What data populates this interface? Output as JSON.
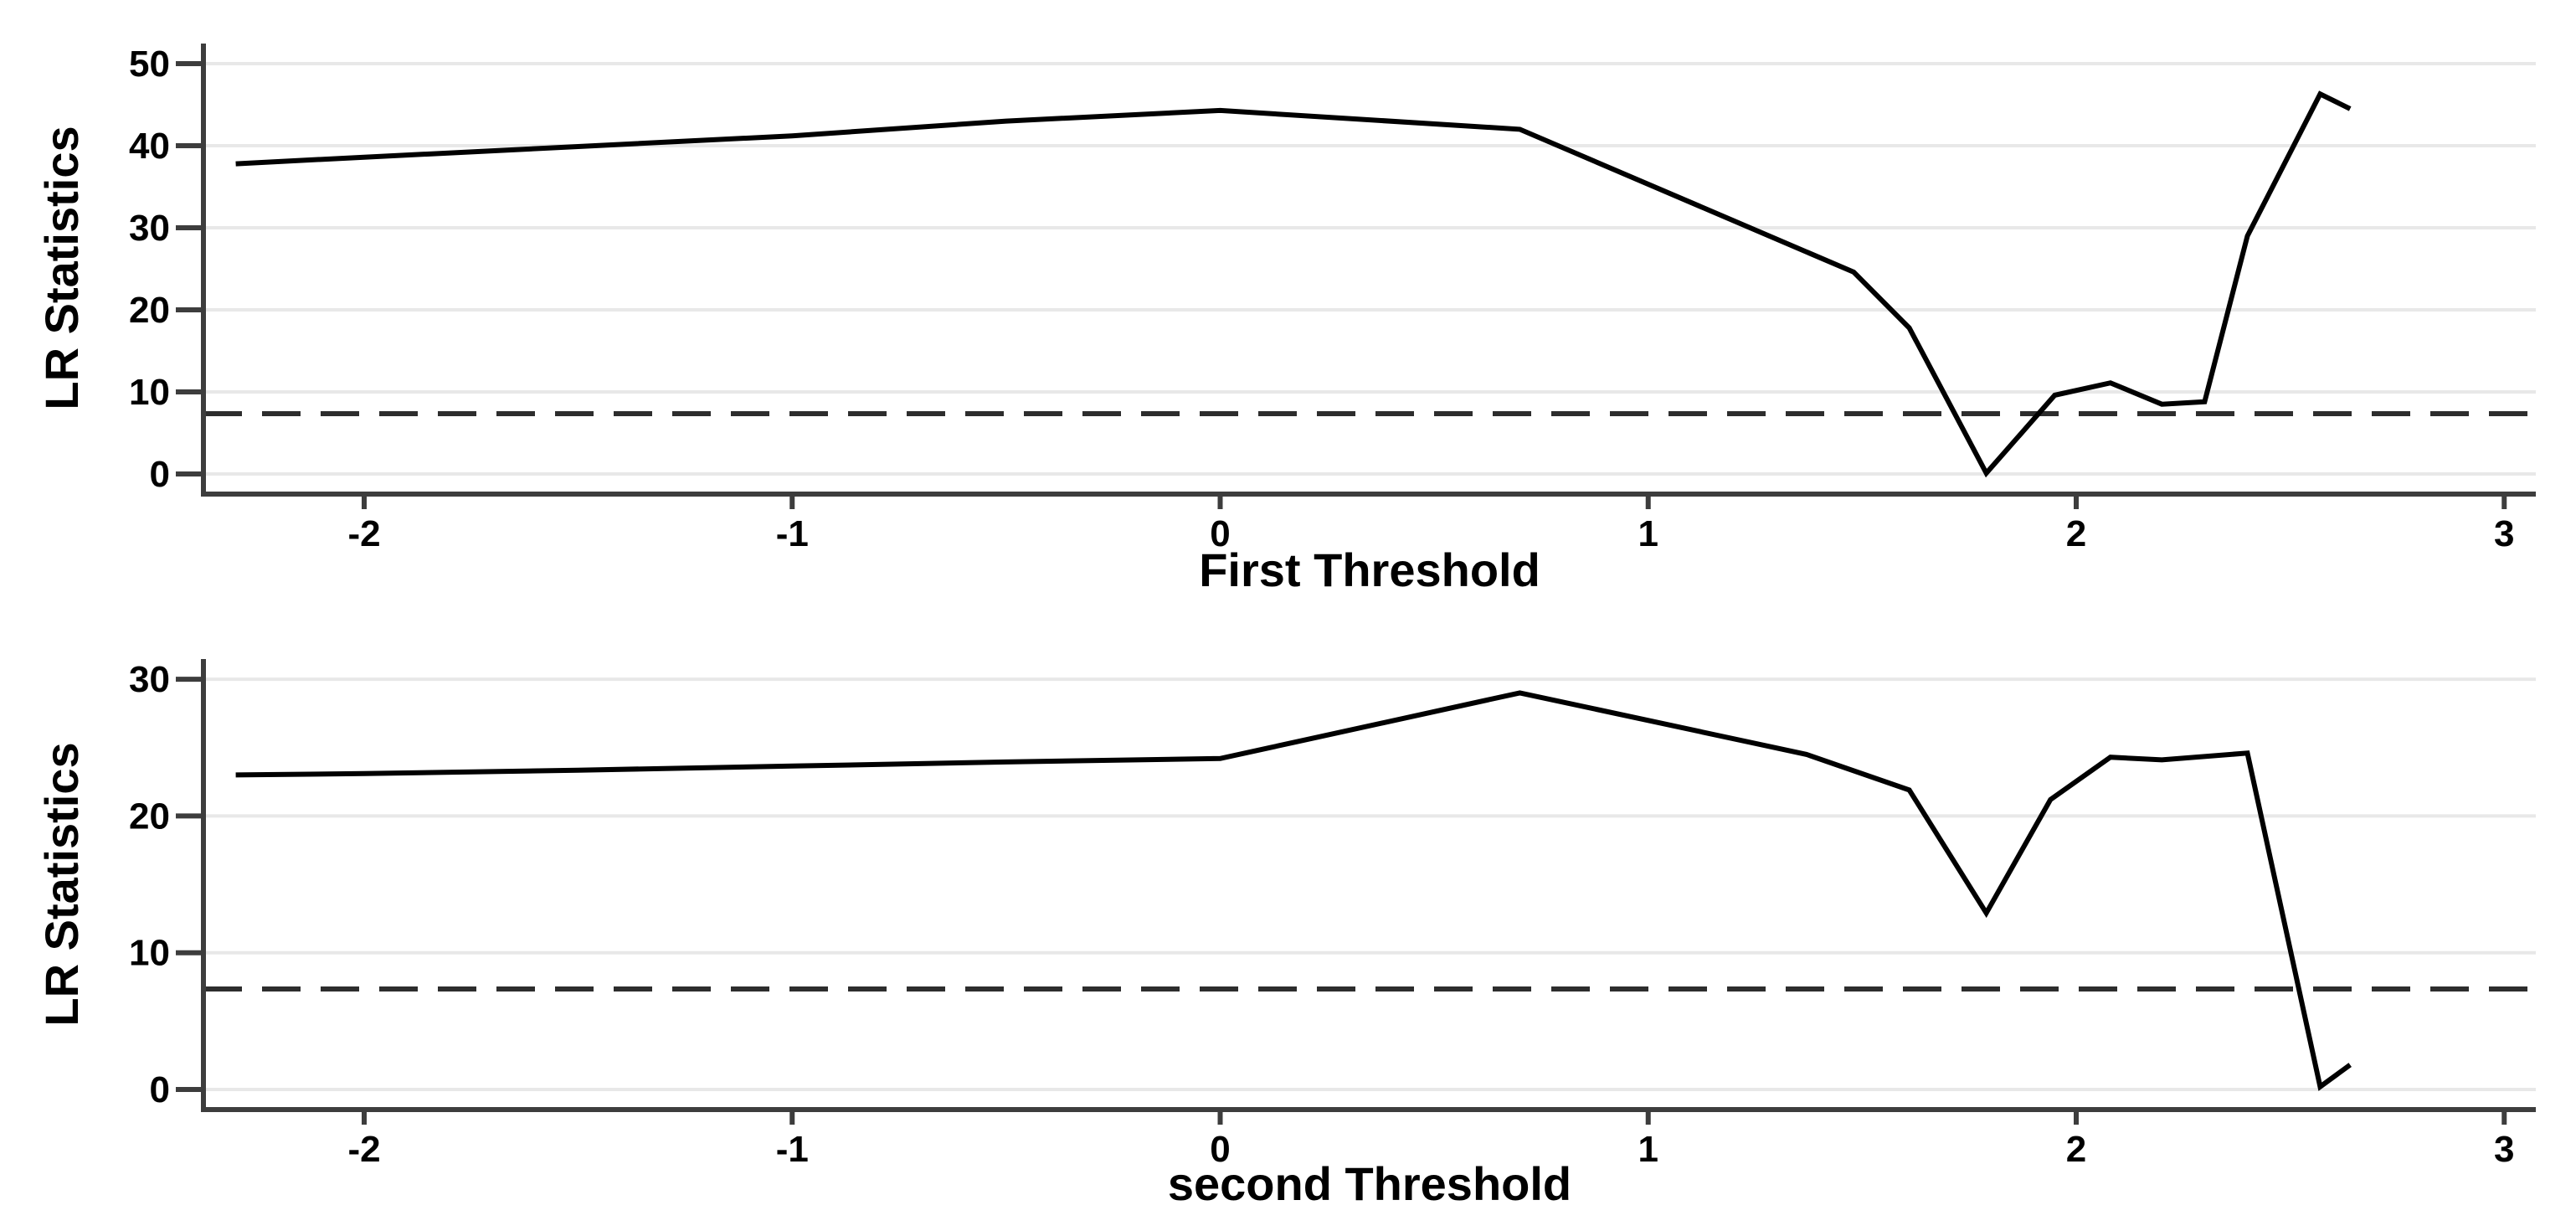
{
  "figure": {
    "description": "Two stacked line charts of likelihood-ratio statistics against candidate threshold values, each with a dashed critical-value reference line",
    "background": "#ffffff",
    "colors": {
      "series_line": "#000000",
      "reference_line": "#2d2d2d",
      "gridline": "#e8e8e8",
      "axis": "#3d3d3d",
      "text": "#000000"
    }
  },
  "chart_data": [
    {
      "type": "line",
      "title": "",
      "xlabel": "First Threshold",
      "ylabel": "LR Statistics",
      "x_ticks": [
        -2,
        -1,
        0,
        1,
        2,
        3
      ],
      "y_ticks": [
        0,
        10,
        20,
        30,
        40,
        50
      ],
      "xlim": [
        -2.38,
        3.08
      ],
      "ylim": [
        -2.5,
        52.4
      ],
      "grid": "horizontal",
      "legend": "none",
      "reference_line": {
        "y": 7.35,
        "style": "dashed"
      },
      "series": [
        {
          "name": "LR statistic",
          "points": [
            [
              -2.3,
              37.8
            ],
            [
              -2.0,
              38.6
            ],
            [
              -1.5,
              39.9
            ],
            [
              -1.0,
              41.2
            ],
            [
              -0.5,
              43.0
            ],
            [
              0.0,
              44.3
            ],
            [
              0.7,
              42.0
            ],
            [
              1.48,
              24.6
            ],
            [
              1.61,
              17.8
            ],
            [
              1.79,
              0.1
            ],
            [
              1.95,
              9.6
            ],
            [
              2.08,
              11.1
            ],
            [
              2.2,
              8.5
            ],
            [
              2.3,
              8.8
            ],
            [
              2.4,
              29.0
            ],
            [
              2.57,
              46.3
            ],
            [
              2.64,
              44.5
            ]
          ]
        }
      ]
    },
    {
      "type": "line",
      "title": "",
      "xlabel": "second Threshold",
      "ylabel": "LR Statistics",
      "x_ticks": [
        -2,
        -1,
        0,
        1,
        2,
        3
      ],
      "y_ticks": [
        0,
        10,
        20,
        30
      ],
      "xlim": [
        -2.38,
        3.08
      ],
      "ylim": [
        -1.5,
        31.5
      ],
      "grid": "horizontal",
      "legend": "none",
      "reference_line": {
        "y": 7.35,
        "style": "dashed"
      },
      "series": [
        {
          "name": "LR statistic",
          "points": [
            [
              -2.3,
              23.0
            ],
            [
              -2.0,
              23.1
            ],
            [
              -1.5,
              23.35
            ],
            [
              -1.0,
              23.65
            ],
            [
              -0.5,
              23.95
            ],
            [
              0.0,
              24.2
            ],
            [
              0.7,
              29.0
            ],
            [
              1.37,
              24.5
            ],
            [
              1.61,
              21.9
            ],
            [
              1.79,
              12.9
            ],
            [
              1.94,
              21.2
            ],
            [
              2.08,
              24.3
            ],
            [
              2.2,
              24.1
            ],
            [
              2.4,
              24.6
            ],
            [
              2.57,
              0.2
            ],
            [
              2.64,
              1.8
            ]
          ]
        }
      ]
    }
  ]
}
